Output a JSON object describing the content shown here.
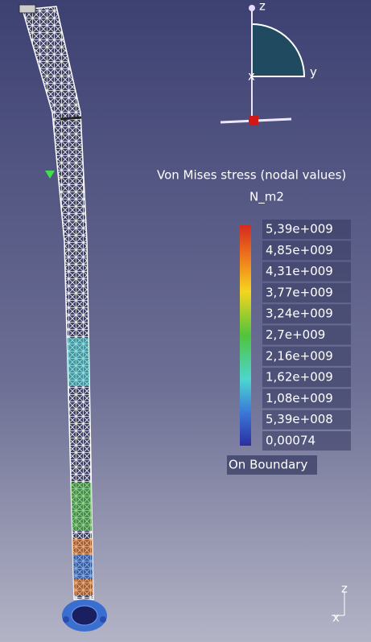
{
  "legend": {
    "title": "Von Mises stress (nodal values)",
    "unit": "N_m2",
    "labels": [
      "5,39e+009",
      "4,85e+009",
      "4,31e+009",
      "3,77e+009",
      "3,24e+009",
      "2,7e+009",
      "2,16e+009",
      "1,62e+009",
      "1,08e+009",
      "5,39e+008",
      "0,00074"
    ],
    "footer": "On Boundary"
  },
  "compass": {
    "z": "z",
    "y": "y",
    "x": "x"
  },
  "triad": {
    "z": "z",
    "x": "x"
  }
}
